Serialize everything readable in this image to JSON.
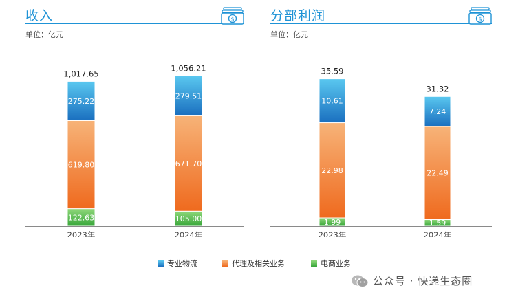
{
  "colors": {
    "accent": "#1f93d6",
    "series": {
      "logistics": [
        "#5ac8f0",
        "#1a6fbf"
      ],
      "agency": [
        "#f7b378",
        "#ef6a1e"
      ],
      "ecommerce": [
        "#8fd87a",
        "#38a63a"
      ]
    }
  },
  "legend": [
    {
      "key": "logistics",
      "label": "专业物流"
    },
    {
      "key": "agency",
      "label": "代理及相关业务"
    },
    {
      "key": "ecommerce",
      "label": "电商业务"
    }
  ],
  "watermark": {
    "icon": "wechat-icon",
    "text": "公众号 · 快递生态圈"
  },
  "chart_data": [
    {
      "type": "bar",
      "stacked": true,
      "title": "收入",
      "unit": "单位：亿元",
      "icon": "money-icon",
      "categories": [
        "2023年",
        "2024年"
      ],
      "series": [
        {
          "key": "ecommerce",
          "values": [
            122.63,
            105.0
          ],
          "labels": [
            "122.63",
            "105.00"
          ]
        },
        {
          "key": "agency",
          "values": [
            619.8,
            671.7
          ],
          "labels": [
            "619.80",
            "671.70"
          ]
        },
        {
          "key": "logistics",
          "values": [
            275.22,
            279.51
          ],
          "labels": [
            "275.22",
            "279.51"
          ]
        }
      ],
      "totals": [
        1017.65,
        1056.21
      ],
      "total_labels": [
        "1,017.65",
        "1,056.21"
      ],
      "ylim": [
        0,
        1150
      ],
      "grid": false
    },
    {
      "type": "bar",
      "stacked": true,
      "title": "分部利润",
      "unit": "单位：亿元",
      "icon": "money-icon",
      "categories": [
        "2023年",
        "2024年"
      ],
      "series": [
        {
          "key": "ecommerce",
          "values": [
            1.99,
            1.59
          ],
          "labels": [
            "1.99",
            "1.59"
          ]
        },
        {
          "key": "agency",
          "values": [
            22.98,
            22.49
          ],
          "labels": [
            "22.98",
            "22.49"
          ]
        },
        {
          "key": "logistics",
          "values": [
            10.61,
            7.24
          ],
          "labels": [
            "10.61",
            "7.24"
          ]
        }
      ],
      "totals": [
        35.59,
        31.32
      ],
      "total_labels": [
        "35.59",
        "31.32"
      ],
      "ylim": [
        0,
        39.5
      ],
      "grid": false
    }
  ]
}
